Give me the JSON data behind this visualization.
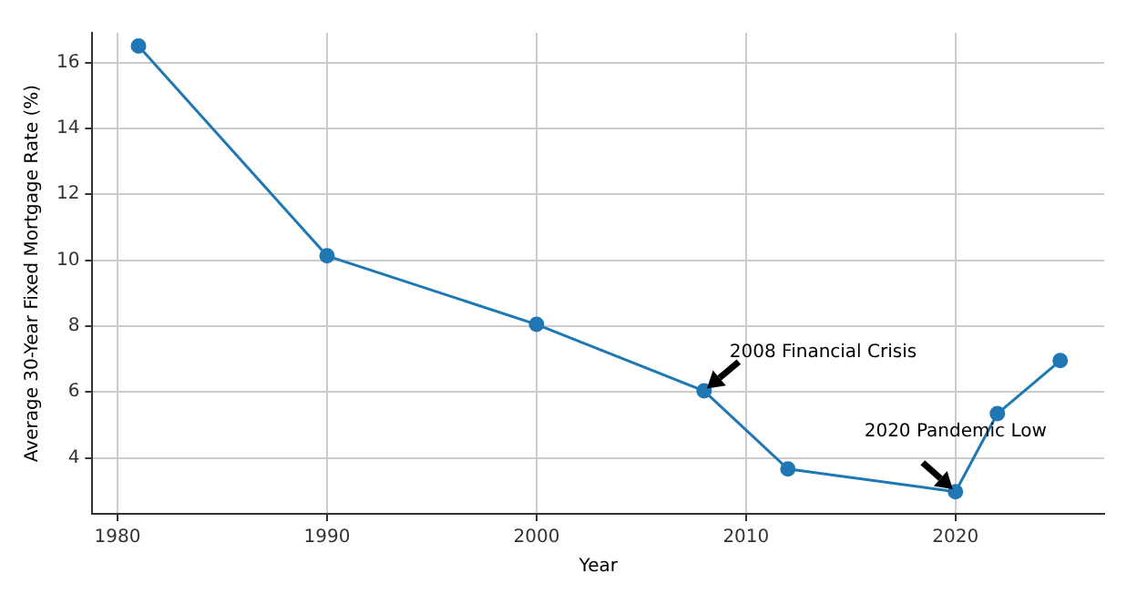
{
  "chart_data": {
    "type": "line",
    "xlabel": "Year",
    "ylabel": "Average 30-Year Fixed Mortgage Rate (%)",
    "x": [
      1981,
      1990,
      2000,
      2008,
      2012,
      2020,
      2022,
      2025
    ],
    "series": [
      {
        "color": "#1f77b4",
        "values": [
          16.5,
          10.13,
          8.05,
          6.03,
          3.66,
          2.97,
          5.34,
          6.95
        ]
      }
    ],
    "xlim": [
      1978.8,
      2027.1
    ],
    "xticks": [
      1980,
      1990,
      2000,
      2010,
      2020
    ],
    "ylim": [
      2.3,
      16.9
    ],
    "yticks": [
      4,
      6,
      8,
      10,
      12,
      14,
      16
    ],
    "grid": true,
    "marker": "circle",
    "line_style": "solid",
    "legend": false,
    "annotations": [
      {
        "text": "2008 Financial Crisis",
        "x": 2008,
        "y": 6.03
      },
      {
        "text": "2020 Pandemic Low",
        "x": 2020,
        "y": 2.97
      }
    ]
  }
}
